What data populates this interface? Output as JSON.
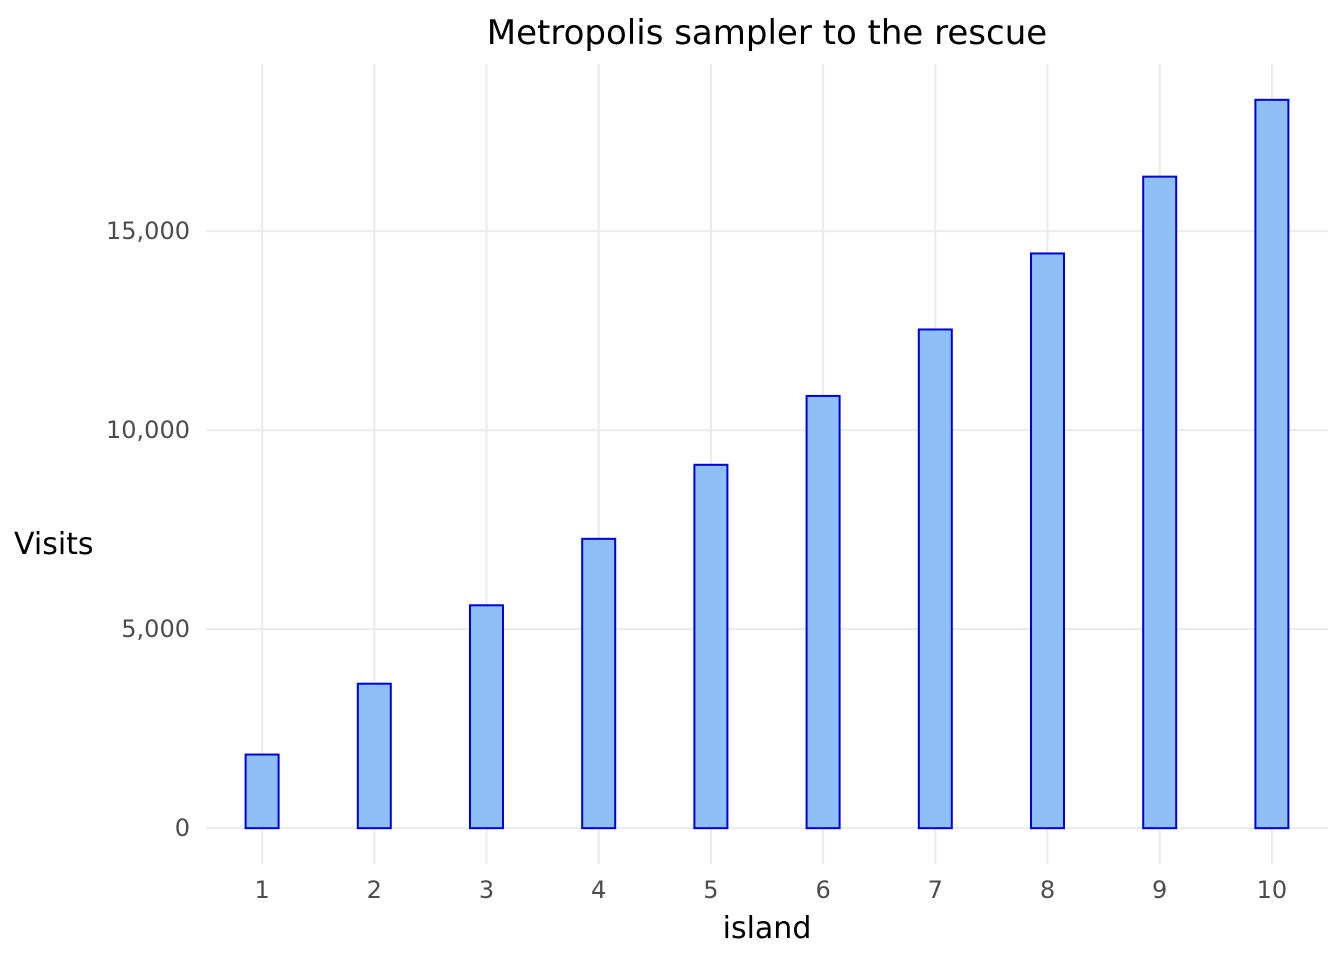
{
  "chart_data": {
    "type": "bar",
    "title": "Metropolis sampler to the rescue",
    "xlabel": "island",
    "ylabel": "Visits",
    "categories": [
      "1",
      "2",
      "3",
      "4",
      "5",
      "6",
      "7",
      "8",
      "9",
      "10"
    ],
    "values": [
      1850,
      3630,
      5600,
      7270,
      9130,
      10860,
      12530,
      14440,
      16370,
      18300
    ],
    "ylim": [
      -900,
      19200
    ],
    "yticks": [
      0,
      5000,
      10000,
      15000
    ],
    "ytick_labels": [
      "0",
      "5,000",
      "10,000",
      "15,000"
    ],
    "grid": true,
    "colors": {
      "bar_fill": "#8fc0f5",
      "bar_stroke": "#0000dd",
      "grid": "#ebebeb",
      "tick_text": "#4d4d4d"
    }
  }
}
